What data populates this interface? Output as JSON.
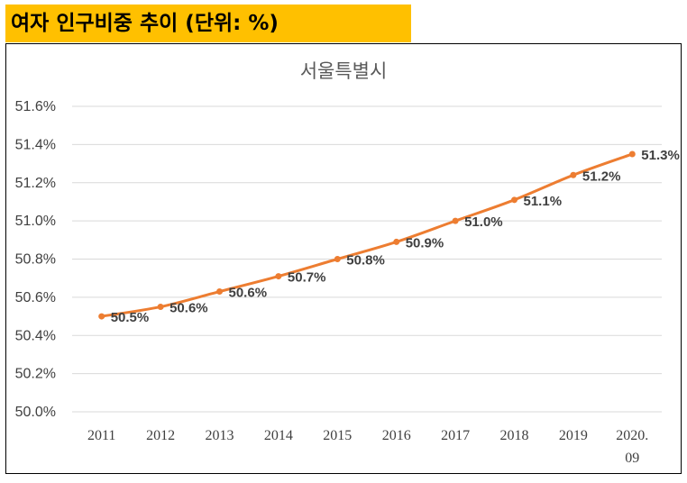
{
  "header": {
    "title": "여자 인구비중 추이 (단위: %)"
  },
  "colors": {
    "header_bg": "#ffc000",
    "series": "#ed7d31",
    "grid": "#d9d9d9"
  },
  "chart_data": {
    "type": "line",
    "title": "서울특별시",
    "categories": [
      "2011",
      "2012",
      "2013",
      "2014",
      "2015",
      "2016",
      "2017",
      "2018",
      "2019",
      "2020.\n09"
    ],
    "series": [
      {
        "name": "서울특별시",
        "values": [
          50.5,
          50.55,
          50.63,
          50.71,
          50.8,
          50.89,
          51.0,
          51.11,
          51.24,
          51.35
        ],
        "labels": [
          "50.5%",
          "50.6%",
          "50.6%",
          "50.7%",
          "50.8%",
          "50.9%",
          "51.0%",
          "51.1%",
          "51.2%",
          "51.3%"
        ]
      }
    ],
    "yticks": [
      "51.6%",
      "51.4%",
      "51.2%",
      "51.0%",
      "50.8%",
      "50.6%",
      "50.4%",
      "50.2%",
      "50.0%"
    ],
    "ylim": [
      50.0,
      51.6
    ],
    "grid": true,
    "legend": "none"
  }
}
